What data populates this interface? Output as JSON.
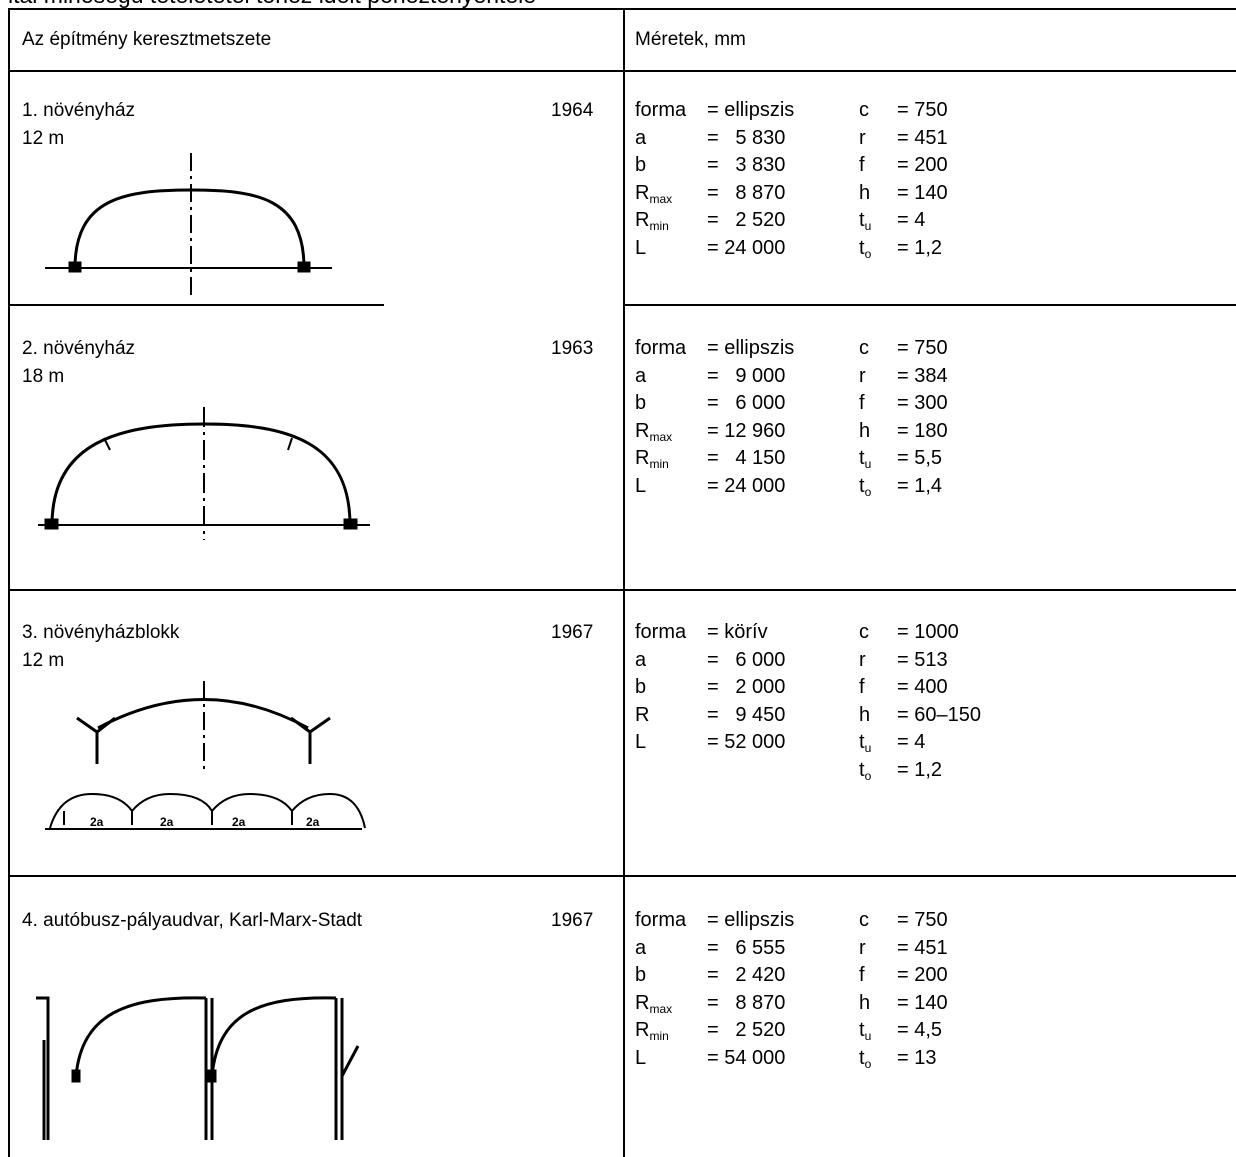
{
  "doc_title": "ltal minőségű tétélététel tóhéz ideit ponéztényéntélé",
  "header": {
    "col1": "Az építmény keresztmetszete",
    "col2": "Méretek, mm"
  },
  "rows": [
    {
      "title": "1. növényház",
      "span": "12 m",
      "year": "1964",
      "dims": [
        [
          "forma",
          "= ellipszis",
          "c",
          "= 750"
        ],
        [
          "a",
          "=   5 830",
          "r",
          "= 451"
        ],
        [
          "b",
          "=   3 830",
          "f",
          "= 200"
        ],
        [
          "R|max",
          "=   8 870",
          "h",
          "= 140"
        ],
        [
          "R|min",
          "=   2 520",
          "t|u",
          "= 4"
        ],
        [
          "L",
          "= 24 000",
          "t|o",
          "= 1,2"
        ]
      ]
    },
    {
      "title": "2. növényház",
      "span": "18 m",
      "year": "1963",
      "dims": [
        [
          "forma",
          "= ellipszis",
          "c",
          "= 750"
        ],
        [
          "a",
          "=   9 000",
          "r",
          "= 384"
        ],
        [
          "b",
          "=   6 000",
          "f",
          "= 300"
        ],
        [
          "R|max",
          "= 12 960",
          "h",
          "= 180"
        ],
        [
          "R|min",
          "=   4 150",
          "t|u",
          "= 5,5"
        ],
        [
          "L",
          "= 24 000",
          "t|o",
          "= 1,4"
        ]
      ]
    },
    {
      "title": "3. növényházblokk",
      "span": "12 m",
      "year": "1967",
      "bay_labels": [
        "2a",
        "2a",
        "2a",
        "2a"
      ],
      "dims": [
        [
          "forma",
          "= körív",
          "c",
          "= 1000"
        ],
        [
          "a",
          "=   6 000",
          "r",
          "= 513"
        ],
        [
          "b",
          "=   2 000",
          "f",
          "= 400"
        ],
        [
          "R",
          "=   9 450",
          "h",
          "= 60–150"
        ],
        [
          "L",
          "= 52 000",
          "t|u",
          "= 4"
        ],
        [
          "",
          "",
          "t|o",
          "= 1,2"
        ]
      ]
    },
    {
      "title": "4. autóbusz-pályaudvar, Karl-Marx-Stadt",
      "span": "",
      "year": "1967",
      "dims": [
        [
          "forma",
          "= ellipszis",
          "c",
          "= 750"
        ],
        [
          "a",
          "=   6 555",
          "r",
          "= 451"
        ],
        [
          "b",
          "=   2 420",
          "f",
          "= 200"
        ],
        [
          "R|max",
          "=   8 870",
          "h",
          "= 140"
        ],
        [
          "R|min",
          "=   2 520",
          "t|u",
          "= 4,5"
        ],
        [
          "L",
          "= 54 000",
          "t|o",
          "= 13"
        ]
      ]
    }
  ]
}
